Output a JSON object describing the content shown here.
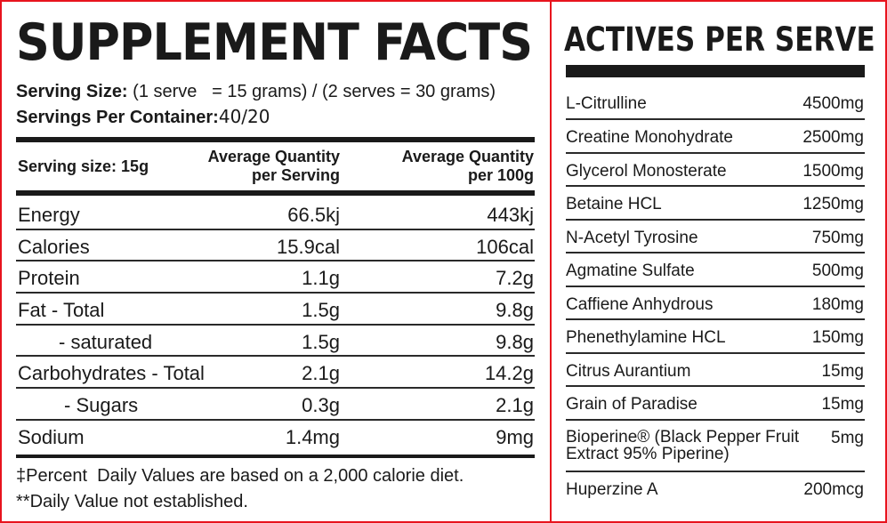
{
  "supplement_facts": {
    "title": "SUPPLEMENT FACTS",
    "serving_size_label": "Serving Size:",
    "serving_size_value": "(1 serve   = 15 grams) / (2 serves = 30 grams)",
    "servings_per_container_label": "Servings Per Container:",
    "servings_per_container_value": "40/20",
    "table_header": {
      "serving_label": "Serving size: 15g",
      "col1_line1": "Average Quantity",
      "col1_line2": "per Serving",
      "col2_line1": "Average Quantity",
      "col2_line2": "per 100g"
    },
    "rows": [
      {
        "label": "Energy",
        "per_serving": "66.5kj",
        "per_100g": "443kj"
      },
      {
        "label": "Calories",
        "per_serving": "15.9cal",
        "per_100g": "106cal"
      },
      {
        "label": "Protein",
        "per_serving": "1.1g",
        "per_100g": "7.2g"
      },
      {
        "label": "Fat - Total",
        "per_serving": "1.5g",
        "per_100g": "9.8g"
      },
      {
        "label": "- saturated",
        "per_serving": "1.5g",
        "per_100g": "9.8g"
      },
      {
        "label": "Carbohydrates - Total",
        "per_serving": "2.1g",
        "per_100g": "14.2g"
      },
      {
        "label": "- Sugars",
        "per_serving": "0.3g",
        "per_100g": "2.1g"
      },
      {
        "label": "Sodium",
        "per_serving": "1.4mg",
        "per_100g": "9mg"
      }
    ],
    "footnote_1": "‡Percent  Daily Values are based on a 2,000 calorie diet.",
    "footnote_2": "**Daily Value not established."
  },
  "actives": {
    "title": "ACTIVES PER SERVE",
    "items": [
      {
        "name": "L-Citrulline",
        "amount": "4500mg"
      },
      {
        "name": "Creatine Monohydrate",
        "amount": "2500mg"
      },
      {
        "name": "Glycerol Monosterate",
        "amount": "1500mg"
      },
      {
        "name": "Betaine HCL",
        "amount": "1250mg"
      },
      {
        "name": "N-Acetyl Tyrosine",
        "amount": "750mg"
      },
      {
        "name": "Agmatine Sulfate",
        "amount": "500mg"
      },
      {
        "name": "Caffiene Anhydrous",
        "amount": "180mg"
      },
      {
        "name": "Phenethylamine HCL",
        "amount": "150mg"
      },
      {
        "name": "Citrus Aurantium",
        "amount": "15mg"
      },
      {
        "name": "Grain of Paradise",
        "amount": "15mg"
      },
      {
        "name": "Bioperine® (Black Pepper Fruit Extract 95% Piperine)",
        "amount": "5mg"
      },
      {
        "name": "Huperzine A",
        "amount": "200mcg"
      }
    ]
  },
  "colors": {
    "border": "#e8141e",
    "text": "#1a1a1a"
  }
}
